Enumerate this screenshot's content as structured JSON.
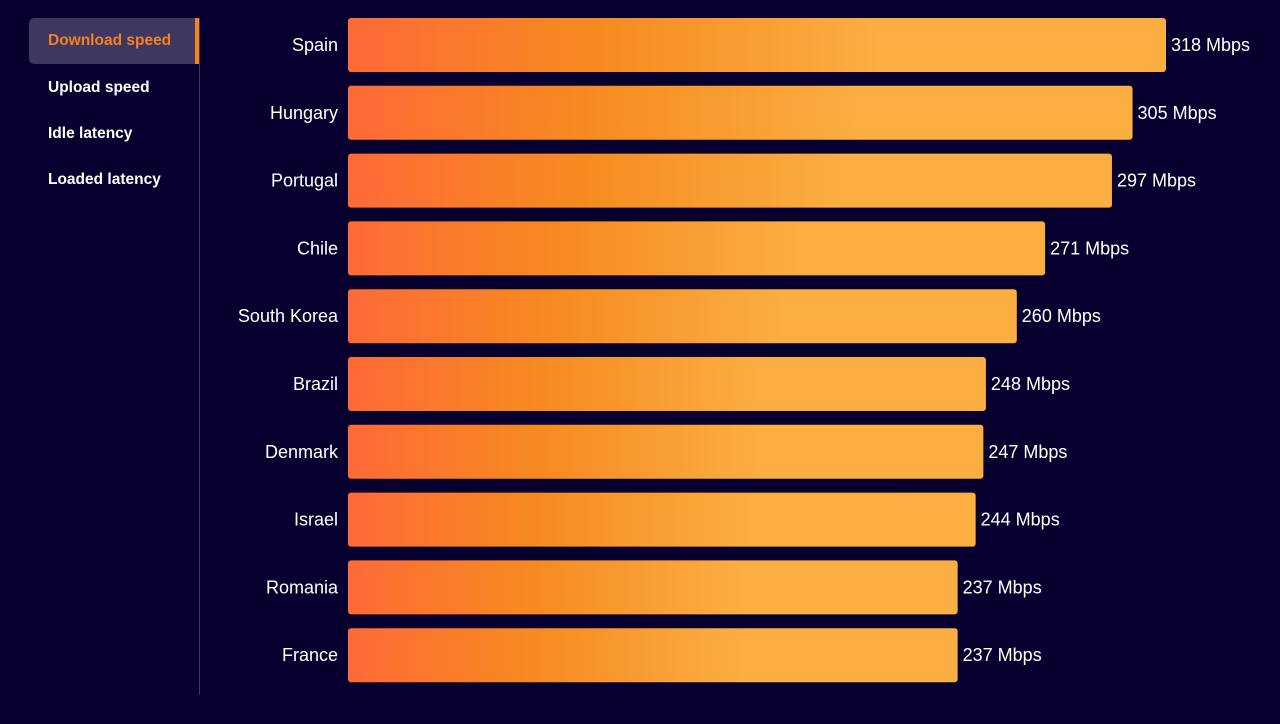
{
  "sidebar": {
    "tabs": [
      {
        "label": "Download speed",
        "active": true
      },
      {
        "label": "Upload speed",
        "active": false
      },
      {
        "label": "Idle latency",
        "active": false
      },
      {
        "label": "Loaded latency",
        "active": false
      }
    ]
  },
  "colors": {
    "background": "#07002e",
    "accent": "#f58220",
    "bar_start": "#ff6a37",
    "bar_mid": "#f68a20",
    "bar_end": "#fbae42"
  },
  "chart_data": {
    "type": "bar",
    "orientation": "horizontal",
    "title": "Download speed",
    "unit": "Mbps",
    "categories": [
      "Spain",
      "Hungary",
      "Portugal",
      "Chile",
      "South Korea",
      "Brazil",
      "Denmark",
      "Israel",
      "Romania",
      "France"
    ],
    "values": [
      318,
      305,
      297,
      271,
      260,
      248,
      247,
      244,
      237,
      237
    ],
    "value_labels": [
      "318 Mbps",
      "305 Mbps",
      "297 Mbps",
      "271 Mbps",
      "260 Mbps",
      "248 Mbps",
      "247 Mbps",
      "244 Mbps",
      "237 Mbps",
      "237 Mbps"
    ],
    "xlim": [
      0,
      318
    ],
    "grid": false
  }
}
